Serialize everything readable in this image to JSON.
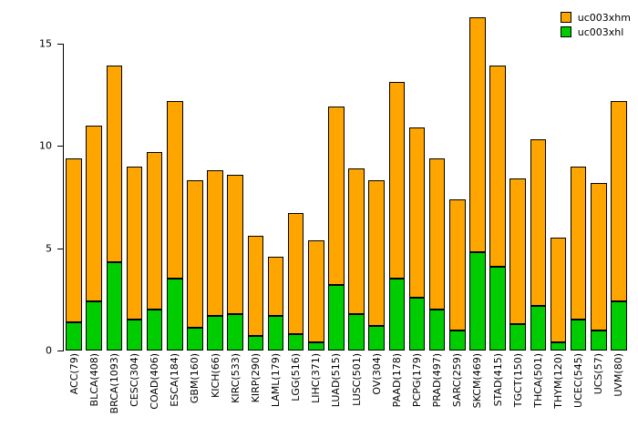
{
  "chart_data": {
    "type": "bar",
    "stacked": true,
    "title": "",
    "xlabel": "",
    "ylabel": "",
    "ylim": [
      0,
      16.5
    ],
    "yticks": [
      0,
      5,
      10,
      15
    ],
    "grid": false,
    "legend_position": "top-right",
    "categories": [
      "ACC(79)",
      "BLCA(408)",
      "BRCA(1093)",
      "CESC(304)",
      "COAD(406)",
      "ESCA(184)",
      "GBM(160)",
      "KICH(66)",
      "KIRC(533)",
      "KIRP(290)",
      "LAML(179)",
      "LGG(516)",
      "LIHC(371)",
      "LUAD(515)",
      "LUSC(501)",
      "OV(304)",
      "PAAD(178)",
      "PCPG(179)",
      "PRAD(497)",
      "SARC(259)",
      "SKCM(469)",
      "STAD(415)",
      "TGCT(150)",
      "THCA(501)",
      "THYM(120)",
      "UCEC(545)",
      "UCS(57)",
      "UVM(80)"
    ],
    "series": [
      {
        "name": "uc003xhm",
        "color": "#FFA500",
        "values": [
          8.0,
          8.6,
          9.6,
          7.5,
          7.7,
          8.7,
          7.2,
          7.1,
          6.8,
          4.9,
          2.9,
          5.9,
          5.0,
          8.7,
          7.1,
          7.1,
          9.6,
          8.3,
          7.4,
          6.4,
          11.5,
          9.8,
          7.1,
          8.1,
          5.1,
          7.5,
          7.2,
          9.8
        ]
      },
      {
        "name": "uc003xhl",
        "color": "#00CD00",
        "values": [
          1.4,
          2.4,
          4.3,
          1.5,
          2.0,
          3.5,
          1.1,
          1.7,
          1.8,
          0.7,
          1.7,
          0.8,
          0.4,
          3.2,
          1.8,
          1.2,
          3.5,
          2.6,
          2.0,
          1.0,
          4.8,
          4.1,
          1.3,
          2.2,
          0.4,
          1.5,
          1.0,
          2.4
        ]
      }
    ],
    "totals": [
      9.4,
      11.0,
      13.9,
      9.0,
      9.7,
      12.2,
      8.3,
      8.8,
      8.6,
      5.6,
      4.6,
      6.7,
      5.4,
      11.9,
      8.9,
      8.3,
      13.1,
      10.9,
      9.4,
      7.4,
      16.3,
      13.9,
      8.4,
      10.3,
      5.5,
      9.0,
      8.2,
      12.2
    ]
  }
}
